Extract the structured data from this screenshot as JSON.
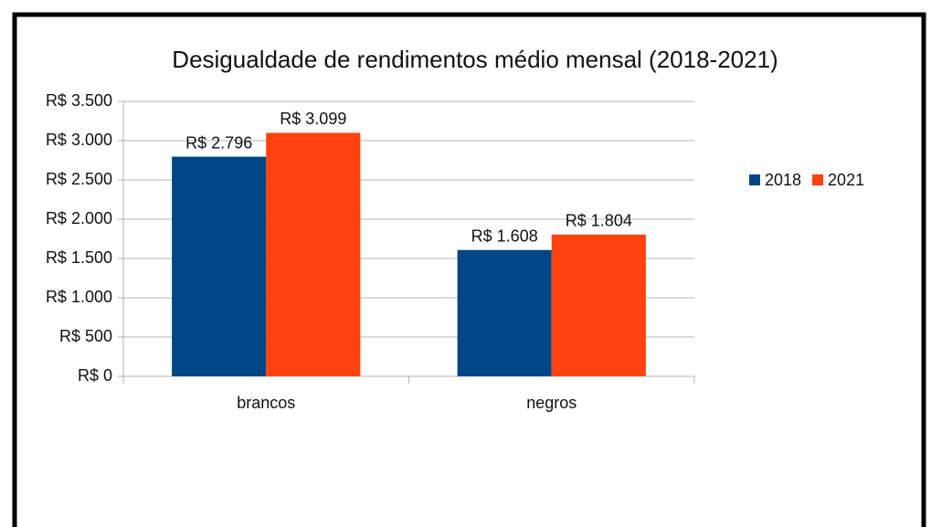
{
  "chart_data": {
    "type": "bar",
    "title": "Desigualdade de rendimentos médio mensal (2018-2021)",
    "categories": [
      "brancos",
      "negros"
    ],
    "series": [
      {
        "name": "2018",
        "color": "#004586",
        "values": [
          2796,
          1608
        ],
        "value_labels": [
          "R$ 2.796",
          "R$ 1.608"
        ]
      },
      {
        "name": "2021",
        "color": "#ff420e",
        "values": [
          3099,
          1804
        ],
        "value_labels": [
          "R$ 3.099",
          "R$ 1.804"
        ]
      }
    ],
    "ylim": [
      0,
      3500
    ],
    "yticks": [
      {
        "value": 0,
        "label": "R$ 0"
      },
      {
        "value": 500,
        "label": "R$ 500"
      },
      {
        "value": 1000,
        "label": "R$ 1.000"
      },
      {
        "value": 1500,
        "label": "R$ 1.500"
      },
      {
        "value": 2000,
        "label": "R$ 2.000"
      },
      {
        "value": 2500,
        "label": "R$ 2.500"
      },
      {
        "value": 3000,
        "label": "R$ 3.000"
      },
      {
        "value": 3500,
        "label": "R$ 3.500"
      }
    ],
    "grid": true,
    "legend": "right"
  }
}
